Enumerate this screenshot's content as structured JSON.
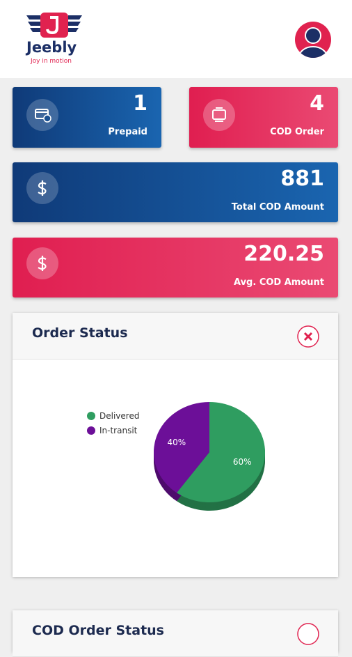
{
  "header": {
    "brand": "Jeebly",
    "tagline": "Joy in motion"
  },
  "cards": [
    {
      "value": 1,
      "label": "Prepaid"
    },
    {
      "value": 4,
      "label": "COD Order"
    },
    {
      "value": 881,
      "label": "Total COD Amount"
    },
    {
      "value": 220.25,
      "label": "Avg. COD Amount"
    }
  ],
  "order_status": {
    "title": "Order Status",
    "chart": {
      "type": "pie",
      "categories": [
        "Delivered",
        "In-transit"
      ],
      "values": [
        60,
        40
      ],
      "value_labels": [
        "60%",
        "40%"
      ],
      "colors": [
        "#2f9d60",
        "#6c0f98"
      ]
    }
  },
  "cod_order_status": {
    "title": "COD Order Status"
  }
}
